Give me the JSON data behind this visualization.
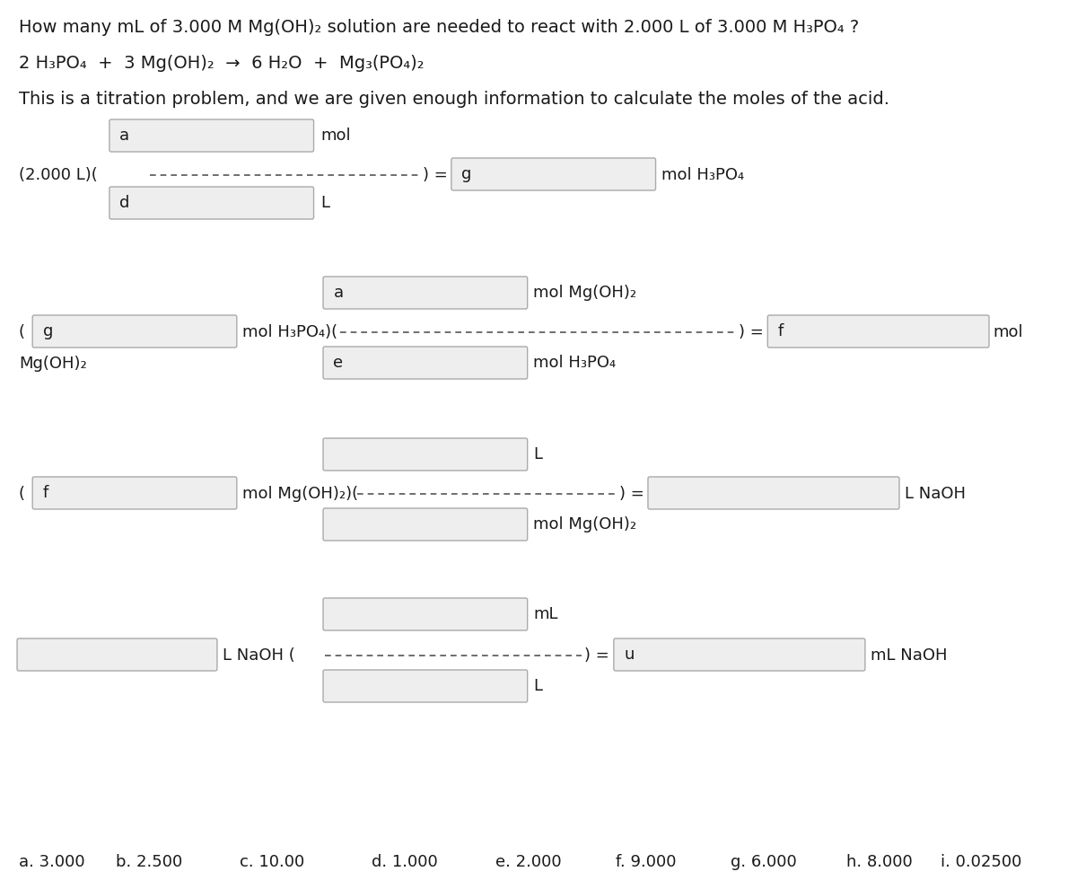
{
  "title_line1": "How many mL of 3.000 M Mg(OH)₂ solution are needed to react with 2.000 L of 3.000 M H₃PO₄ ?",
  "reaction_line": "2 H₃PO₄  +  3 Mg(OH)₂  →  6 H₂O  +  Mg₃(PO₄)₂",
  "description": "This is a titration problem, and we are given enough information to calculate the moles of the acid.",
  "answer_labels": [
    "a. 3.000",
    "b. 2.500",
    "c. 10.00",
    "d. 1.000",
    "e. 2.000",
    "f. 9.000",
    "g. 6.000",
    "h. 8.000",
    "i. 0.02500"
  ],
  "bg_color": "#eeeeee",
  "box_edge_color": "#aaaaaa",
  "text_color": "#1a1a1a",
  "font_size_title": 14,
  "font_size_body": 13,
  "font_size_answers": 13
}
